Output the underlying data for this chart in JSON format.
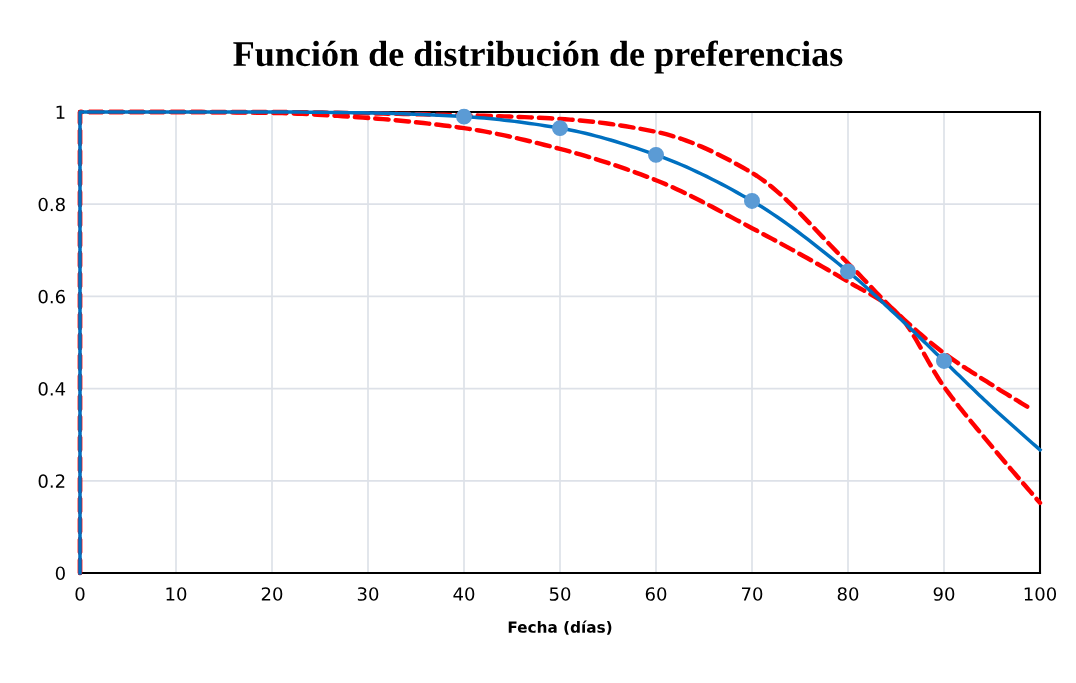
{
  "chart_data": {
    "type": "line",
    "title": "Función de distribución de preferencias",
    "xlabel": "Fecha (días)",
    "xlim": [
      0,
      100
    ],
    "ylim": [
      0,
      1
    ],
    "xticks": [
      0,
      10,
      20,
      30,
      40,
      50,
      60,
      70,
      80,
      90,
      100
    ],
    "yticks": [
      0,
      0.2,
      0.4,
      0.6,
      0.8,
      1
    ],
    "grid": true,
    "series": [
      {
        "line_style": "dashed",
        "color": "#ff0000",
        "x": [
          0,
          0,
          10,
          20,
          30,
          40,
          50,
          60,
          70,
          80,
          85,
          90,
          95,
          99.2
        ],
        "values": [
          0,
          1,
          1,
          1,
          0.997,
          0.993,
          0.985,
          0.957,
          0.868,
          0.672,
          0.566,
          0.477,
          0.408,
          0.354
        ]
      },
      {
        "line_style": "dashed",
        "color": "#ff0000",
        "x": [
          0,
          0,
          10,
          20,
          30,
          40,
          50,
          60,
          70,
          80,
          85,
          90,
          95,
          100
        ],
        "values": [
          0,
          1,
          1,
          0.998,
          0.987,
          0.965,
          0.92,
          0.852,
          0.748,
          0.632,
          0.566,
          0.404,
          0.274,
          0.152
        ]
      },
      {
        "line_style": "solid",
        "color": "#0070c0",
        "x": [
          0,
          0,
          10,
          20,
          30,
          40,
          50,
          60,
          70,
          80,
          85,
          90,
          95,
          100
        ],
        "values": [
          0,
          1,
          1,
          1,
          0.998,
          0.99,
          0.965,
          0.907,
          0.807,
          0.654,
          0.56,
          0.46,
          0.36,
          0.267
        ]
      },
      {
        "type": "scatter",
        "marker": "circle",
        "color": "#5b9bd5",
        "x": [
          40,
          50,
          60,
          70,
          80,
          90
        ],
        "values": [
          0.99,
          0.965,
          0.907,
          0.807,
          0.654,
          0.46
        ]
      }
    ]
  }
}
